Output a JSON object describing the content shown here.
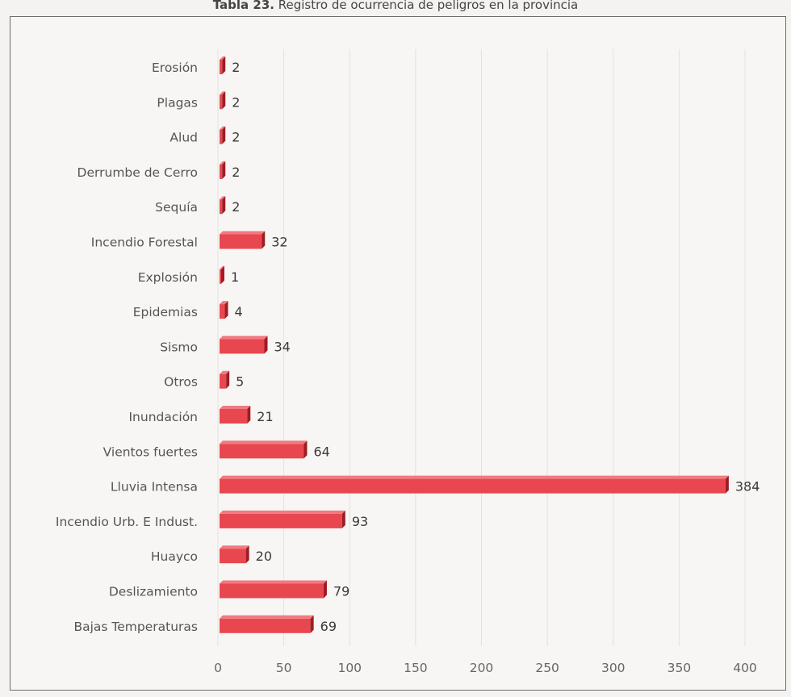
{
  "caption": {
    "prefix": "Tabla 23.",
    "text": " Registro de ocurrencia de peligros en la provincia"
  },
  "colors": {
    "bar_front": "#e8474f",
    "bar_top": "#f07a80",
    "bar_side": "#9e1c25",
    "grid": "#e3e1de",
    "frame": "#6d6d6d"
  },
  "chart_data": {
    "type": "bar",
    "orientation": "horizontal",
    "categories": [
      "Erosión",
      "Plagas",
      "Alud",
      "Derrumbe de Cerro",
      "Sequía",
      "Incendio Forestal",
      "Explosión",
      "Epidemias",
      "Sismo",
      "Otros",
      "Inundación",
      "Vientos fuertes",
      "Lluvia Intensa",
      "Incendio Urb. E Indust.",
      "Huayco",
      "Deslizamiento",
      "Bajas Temperaturas"
    ],
    "values": [
      2,
      2,
      2,
      2,
      2,
      32,
      1,
      4,
      34,
      5,
      21,
      64,
      384,
      93,
      20,
      79,
      69
    ],
    "xlim": [
      0,
      400
    ],
    "xticks": [
      0,
      50,
      100,
      150,
      200,
      250,
      300,
      350,
      400
    ],
    "grid": true,
    "legend": "none",
    "data_labels": true
  }
}
